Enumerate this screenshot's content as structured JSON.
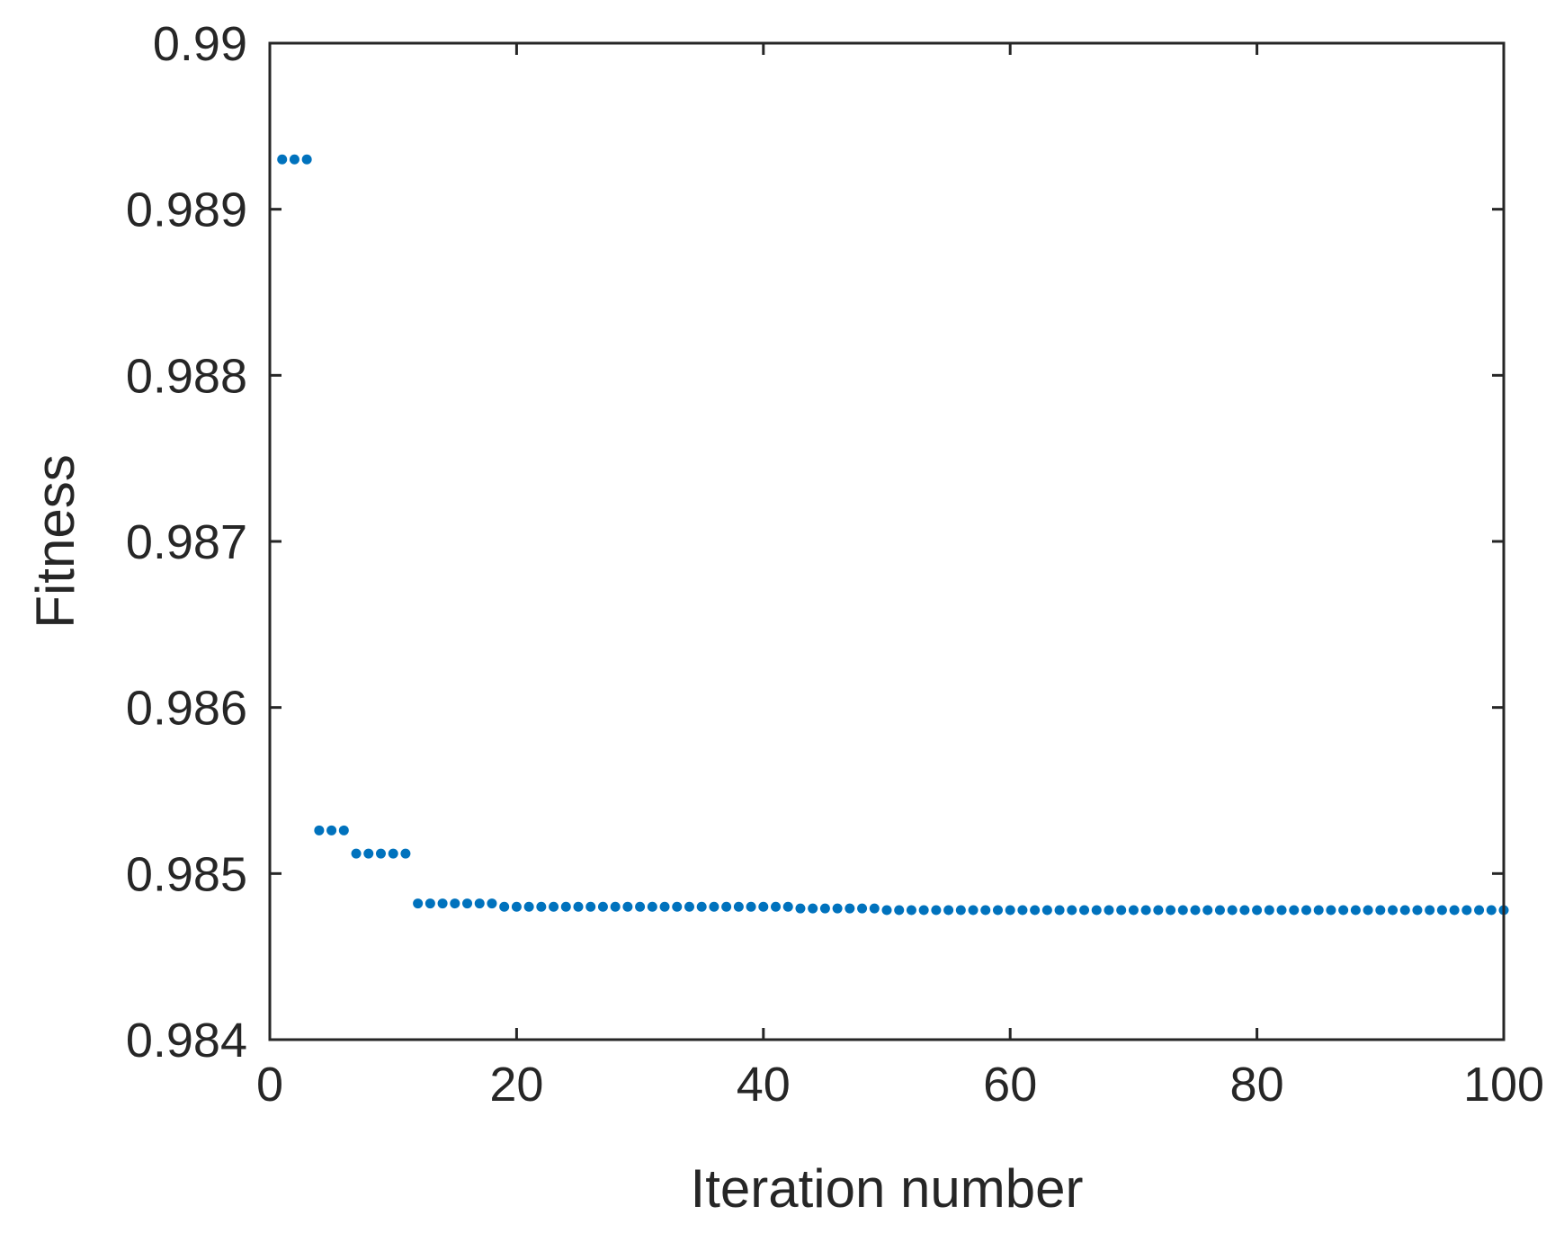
{
  "chart_data": {
    "type": "scatter",
    "title": "",
    "xlabel": "Iteration number",
    "ylabel": "Fitness",
    "xlim": [
      0,
      100
    ],
    "ylim": [
      0.984,
      0.99
    ],
    "xticks": [
      0,
      20,
      40,
      60,
      80,
      100
    ],
    "xtick_labels": [
      "0",
      "20",
      "40",
      "60",
      "80",
      "100"
    ],
    "yticks": [
      0.984,
      0.985,
      0.986,
      0.987,
      0.988,
      0.989,
      0.99
    ],
    "ytick_labels": [
      "0.984",
      "0.985",
      "0.986",
      "0.987",
      "0.988",
      "0.989",
      "0.99"
    ],
    "grid": false,
    "legend": "none",
    "marker_color": "#0072BD",
    "axis_color": "#262626",
    "series": [
      {
        "x": [
          1,
          2,
          3,
          4,
          5,
          6,
          7,
          8,
          9,
          10,
          11,
          12,
          13,
          14,
          15,
          16,
          17,
          18,
          19,
          20,
          21,
          22,
          23,
          24,
          25,
          26,
          27,
          28,
          29,
          30,
          31,
          32,
          33,
          34,
          35,
          36,
          37,
          38,
          39,
          40,
          41,
          42,
          43,
          44,
          45,
          46,
          47,
          48,
          49,
          50,
          51,
          52,
          53,
          54,
          55,
          56,
          57,
          58,
          59,
          60,
          61,
          62,
          63,
          64,
          65,
          66,
          67,
          68,
          69,
          70,
          71,
          72,
          73,
          74,
          75,
          76,
          77,
          78,
          79,
          80,
          81,
          82,
          83,
          84,
          85,
          86,
          87,
          88,
          89,
          90,
          91,
          92,
          93,
          94,
          95,
          96,
          97,
          98,
          99,
          100
        ],
        "y": [
          0.9893,
          0.9893,
          0.9893,
          0.98526,
          0.98526,
          0.98526,
          0.98512,
          0.98512,
          0.98512,
          0.98512,
          0.98512,
          0.98482,
          0.98482,
          0.98482,
          0.98482,
          0.98482,
          0.98482,
          0.98482,
          0.9848,
          0.9848,
          0.9848,
          0.9848,
          0.9848,
          0.9848,
          0.9848,
          0.9848,
          0.9848,
          0.9848,
          0.9848,
          0.9848,
          0.9848,
          0.9848,
          0.9848,
          0.9848,
          0.9848,
          0.9848,
          0.9848,
          0.9848,
          0.9848,
          0.9848,
          0.9848,
          0.9848,
          0.98479,
          0.98479,
          0.98479,
          0.98479,
          0.98479,
          0.98479,
          0.98479,
          0.98478,
          0.98478,
          0.98478,
          0.98478,
          0.98478,
          0.98478,
          0.98478,
          0.98478,
          0.98478,
          0.98478,
          0.98478,
          0.98478,
          0.98478,
          0.98478,
          0.98478,
          0.98478,
          0.98478,
          0.98478,
          0.98478,
          0.98478,
          0.98478,
          0.98478,
          0.98478,
          0.98478,
          0.98478,
          0.98478,
          0.98478,
          0.98478,
          0.98478,
          0.98478,
          0.98478,
          0.98478,
          0.98478,
          0.98478,
          0.98478,
          0.98478,
          0.98478,
          0.98478,
          0.98478,
          0.98478,
          0.98478,
          0.98478,
          0.98478,
          0.98478,
          0.98478,
          0.98478,
          0.98478,
          0.98478,
          0.98478,
          0.98478,
          0.98478
        ]
      }
    ]
  }
}
